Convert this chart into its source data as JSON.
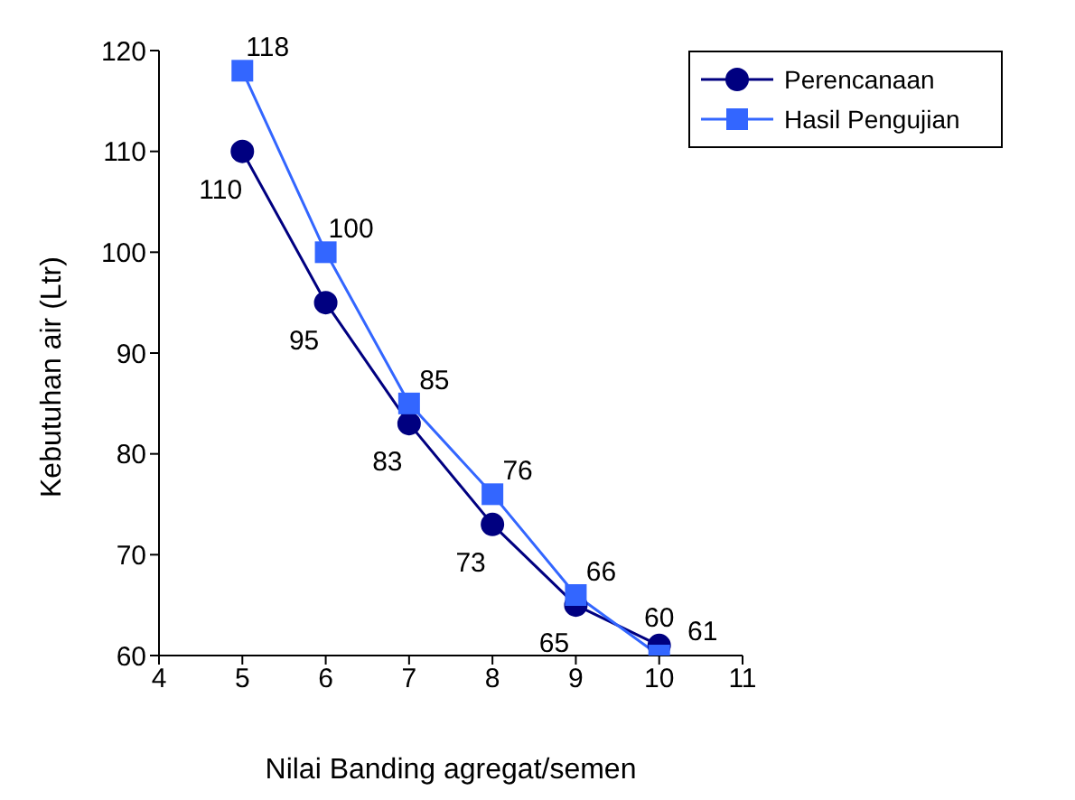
{
  "chart_data": {
    "type": "line",
    "xlabel": "Nilai Banding agregat/semen",
    "ylabel": "Kebutuhan air (Ltr)",
    "x": [
      5,
      6,
      7,
      8,
      9,
      10
    ],
    "series": [
      {
        "name": "Perencanaan",
        "color": "#000080",
        "marker": "circle",
        "values": [
          110,
          95,
          83,
          73,
          65,
          61
        ]
      },
      {
        "name": "Hasil Pengujian",
        "color": "#3366ff",
        "marker": "square",
        "values": [
          118,
          100,
          85,
          76,
          66,
          60
        ]
      }
    ],
    "xlim": [
      4,
      11
    ],
    "xticks": [
      4,
      5,
      6,
      7,
      8,
      9,
      10,
      11
    ],
    "ylim": [
      60,
      120
    ],
    "yticks": [
      60,
      70,
      80,
      90,
      100,
      110,
      120
    ],
    "grid": false,
    "legend": "top right",
    "data_labels": true,
    "line_style": "solid"
  }
}
